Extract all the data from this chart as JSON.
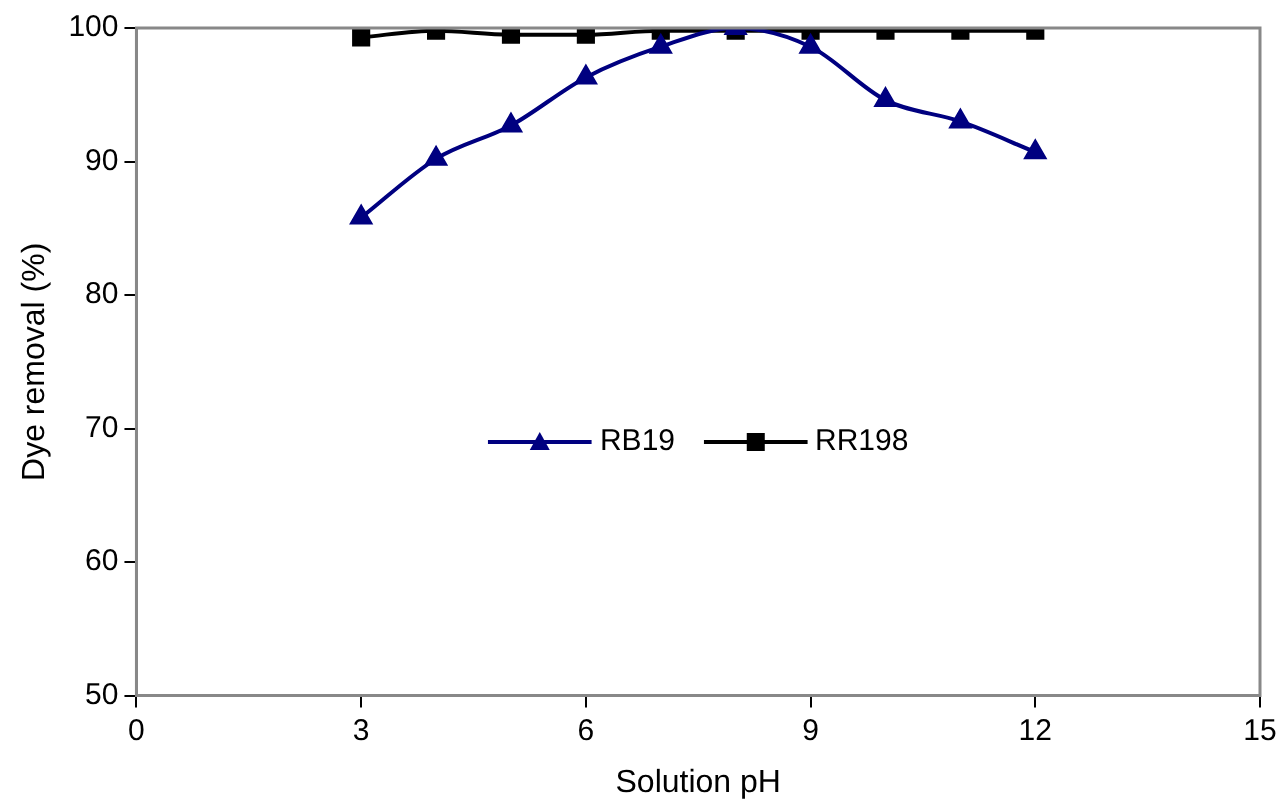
{
  "chart_data": {
    "type": "line",
    "xlabel": "Solution pH",
    "ylabel": "Dye removal (%)",
    "xlim": [
      0,
      15
    ],
    "xticks": [
      0,
      3,
      6,
      9,
      12,
      15
    ],
    "ylim": [
      50,
      100
    ],
    "yticks": [
      50,
      60,
      70,
      80,
      90,
      100
    ],
    "grid": false,
    "legend": "center",
    "line_style": "solid",
    "series": [
      {
        "name": "RB19",
        "color": "#000080",
        "marker": "triangle",
        "x": [
          3,
          4,
          5,
          6,
          7,
          8,
          9,
          10,
          11,
          12
        ],
        "values": [
          85.8,
          90.2,
          92.7,
          96.3,
          98.6,
          100,
          98.6,
          94.6,
          93,
          90.7
        ]
      },
      {
        "name": "RR198",
        "color": "#000000",
        "marker": "square",
        "x": [
          3,
          4,
          5,
          6,
          7,
          8,
          9,
          10,
          11,
          12
        ],
        "values": [
          99.3,
          99.8,
          99.5,
          99.5,
          99.8,
          99.8,
          99.8,
          99.8,
          99.8,
          99.8
        ]
      }
    ]
  }
}
